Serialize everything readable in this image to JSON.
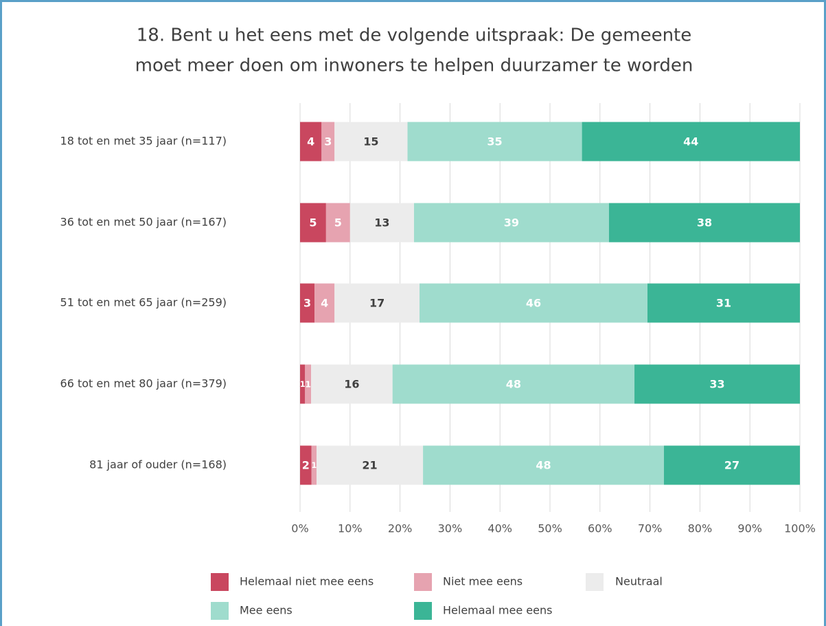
{
  "chart_data": {
    "type": "stacked_bar_horizontal",
    "title": [
      "18. Bent u het eens met de volgende uitspraak: De gemeente",
      "moet meer doen om inwoners te helpen duurzamer te worden"
    ],
    "categories": [
      "18 tot en met 35 jaar (n=117)",
      "36 tot en met 50 jaar (n=167)",
      "51 tot en met 65 jaar (n=259)",
      "66 tot en met 80 jaar (n=379)",
      "81 jaar of ouder (n=168)"
    ],
    "series": [
      {
        "name": "Helemaal niet mee eens",
        "color": "#c9475f",
        "label_color": "#ffffff",
        "values": [
          4.3,
          5.2,
          2.9,
          1.0,
          2.3
        ],
        "value_labels": [
          "4",
          "5",
          "3",
          "1",
          "2"
        ]
      },
      {
        "name": "Niet mee eens",
        "color": "#e6a3b0",
        "label_color": "#ffffff",
        "values": [
          2.6,
          4.8,
          4.0,
          1.2,
          1.0
        ],
        "value_labels": [
          "3",
          "5",
          "4",
          "1",
          "1"
        ]
      },
      {
        "name": "Neutraal",
        "color": "#ececec",
        "label_color": "#404040",
        "values": [
          14.6,
          12.8,
          17.0,
          16.3,
          21.3
        ],
        "value_labels": [
          "15",
          "13",
          "17",
          "16",
          "21"
        ]
      },
      {
        "name": "Mee eens",
        "color": "#9fdccd",
        "label_color": "#ffffff",
        "values": [
          34.9,
          39.0,
          45.6,
          48.4,
          48.2
        ],
        "value_labels": [
          "35",
          "39",
          "46",
          "48",
          "48"
        ]
      },
      {
        "name": "Helemaal mee eens",
        "color": "#3bb596",
        "label_color": "#ffffff",
        "values": [
          43.6,
          38.2,
          30.5,
          33.1,
          27.2
        ],
        "value_labels": [
          "44",
          "38",
          "31",
          "33",
          "27"
        ]
      }
    ],
    "xlim": [
      0,
      100
    ],
    "xticks": [
      {
        "value": 0,
        "label": "0%"
      },
      {
        "value": 10,
        "label": "10%"
      },
      {
        "value": 20,
        "label": "20%"
      },
      {
        "value": 30,
        "label": "30%"
      },
      {
        "value": 40,
        "label": "40%"
      },
      {
        "value": 50,
        "label": "50%"
      },
      {
        "value": 60,
        "label": "60%"
      },
      {
        "value": 70,
        "label": "70%"
      },
      {
        "value": 80,
        "label": "80%"
      },
      {
        "value": 90,
        "label": "90%"
      },
      {
        "value": 100,
        "label": "100%"
      }
    ],
    "grid": true,
    "legend": "bottom"
  }
}
